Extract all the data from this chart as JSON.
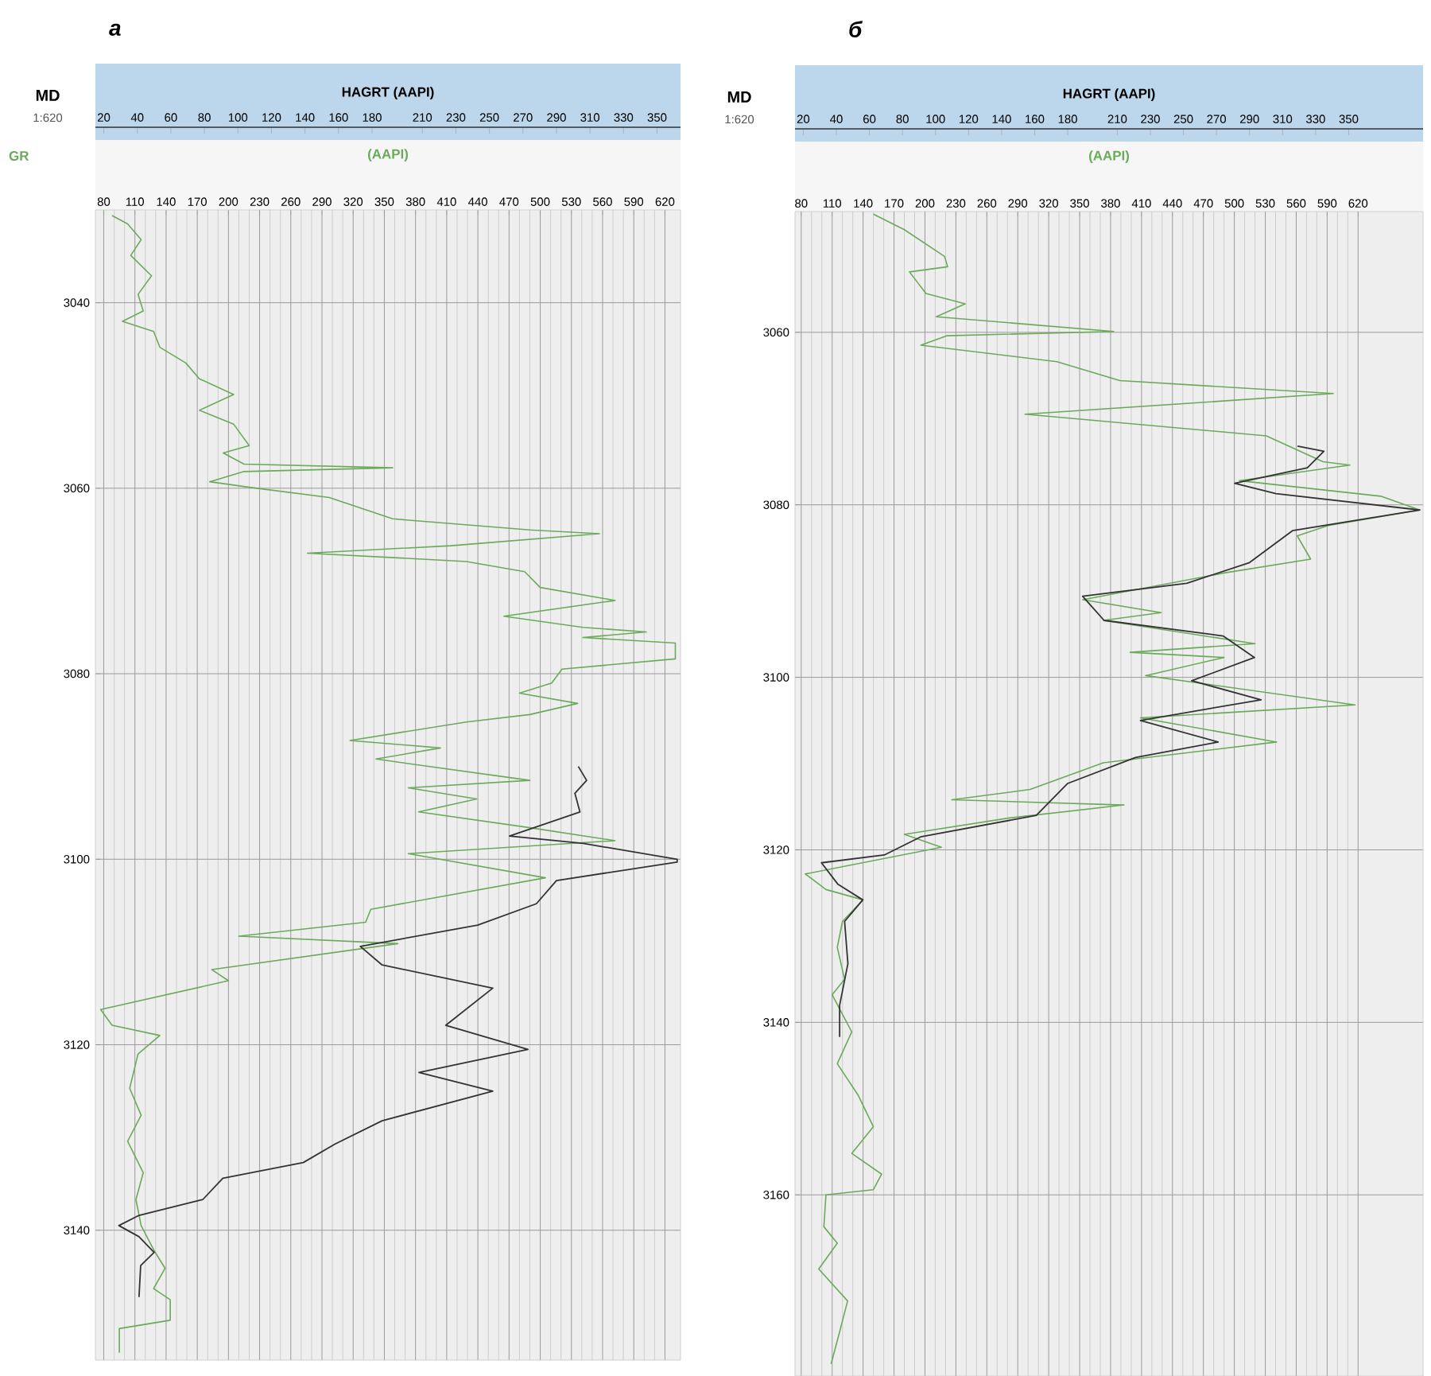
{
  "chart_data": [
    {
      "type": "line",
      "title": "а",
      "xlabel": "(AAPI)",
      "x2label": "HAGRT (AAPI)",
      "ylabel": "MD",
      "annotations": [
        "1:620"
      ],
      "xlim": [
        72,
        635
      ],
      "xticks": [
        80,
        110,
        140,
        170,
        200,
        230,
        260,
        290,
        320,
        350,
        380,
        410,
        440,
        470,
        500,
        530,
        560,
        590,
        620
      ],
      "x2lim": [
        15,
        364
      ],
      "x2ticks": [
        20,
        40,
        60,
        80,
        100,
        120,
        140,
        160,
        180,
        210,
        230,
        250,
        270,
        290,
        310,
        330,
        350
      ],
      "ylim": [
        3154,
        3030
      ],
      "yticks": [
        3040,
        3060,
        3080,
        3100,
        3120,
        3140
      ],
      "grid": true,
      "series": [
        {
          "name": "GR",
          "color": "#6aaa5a",
          "x": [
            88,
            103,
            116,
            106,
            126,
            113,
            118,
            98,
            128,
            134,
            159,
            172,
            205,
            172,
            205,
            220,
            195,
            215,
            358,
            215,
            182,
            220,
            297,
            358,
            490,
            557,
            414,
            276,
            429,
            485,
            500,
            572,
            465,
            541,
            602,
            541,
            630,
            630,
            521,
            511,
            480,
            536,
            490,
            429,
            317,
            404,
            342,
            490,
            373,
            439,
            383,
            490,
            572,
            373,
            505,
            337,
            332,
            210,
            363,
            184,
            200,
            77,
            88,
            134,
            113,
            105,
            116,
            103,
            118,
            111,
            116,
            128,
            139,
            128,
            144,
            144,
            95,
            95
          ],
          "values": [
            3030.6,
            3031.5,
            3033.2,
            3034.9,
            3037.1,
            3039.1,
            3040.9,
            3042,
            3043.1,
            3044.8,
            3046.5,
            3048.2,
            3049.9,
            3051.6,
            3053.1,
            3055.4,
            3056.2,
            3057.4,
            3057.8,
            3058.2,
            3059.3,
            3059.9,
            3061,
            3063.3,
            3064.5,
            3064.9,
            3066.2,
            3067,
            3067.9,
            3069,
            3070.7,
            3072.1,
            3073.8,
            3075,
            3075.5,
            3076.1,
            3076.7,
            3078.4,
            3079.5,
            3081,
            3082.1,
            3083.2,
            3084.4,
            3085.2,
            3087.2,
            3088,
            3089.2,
            3091.5,
            3092.3,
            3093.5,
            3094.9,
            3096.6,
            3098,
            3099.4,
            3102,
            3105.4,
            3106.8,
            3108.3,
            3109.1,
            3111.9,
            3113.1,
            3116.2,
            3117.9,
            3119,
            3121,
            3124.7,
            3127.6,
            3130.4,
            3133.8,
            3136.7,
            3139.5,
            3142.1,
            3144.1,
            3146.3,
            3147.5,
            3149.7,
            3150.6,
            3153.2
          ]
        },
        {
          "color": "#333333",
          "axis": "x2",
          "x": [
            303,
            308,
            301,
            304,
            262,
            306,
            362,
            362,
            290,
            278,
            243,
            173,
            186,
            252,
            224,
            273,
            208,
            252,
            186,
            158,
            139,
            91,
            79,
            41,
            29,
            41,
            50,
            42,
            41
          ],
          "values": [
            3090,
            3091.5,
            3092.9,
            3094.9,
            3097.5,
            3098.3,
            3100,
            3100.3,
            3102.3,
            3104.8,
            3107.1,
            3109.4,
            3111.4,
            3113.9,
            3117.9,
            3120.5,
            3123,
            3125,
            3128.2,
            3130.7,
            3132.7,
            3134.4,
            3136.7,
            3138.4,
            3139.5,
            3140.7,
            3142.4,
            3143.8,
            3147.2
          ]
        }
      ]
    },
    {
      "type": "line",
      "title": "б",
      "xlabel": "(AAPI)",
      "x2label": "HAGRT (AAPI)",
      "ylabel": "MD",
      "annotations": [
        "1:620"
      ],
      "xlim": [
        74,
        683
      ],
      "xticks": [
        80,
        110,
        140,
        170,
        200,
        230,
        260,
        290,
        320,
        350,
        380,
        410,
        440,
        470,
        500,
        530,
        560,
        590,
        620
      ],
      "x2lim": [
        15,
        395
      ],
      "x2ticks": [
        20,
        40,
        60,
        80,
        100,
        120,
        140,
        160,
        180,
        210,
        230,
        250,
        270,
        290,
        310,
        330,
        350
      ],
      "ylim": [
        3181,
        3046
      ],
      "yticks": [
        3060,
        3080,
        3100,
        3120,
        3140,
        3160
      ],
      "grid": true,
      "series": [
        {
          "color": "#6aaa5a",
          "x": [
            150,
            180,
            219,
            222,
            185,
            201,
            239,
            211,
            383,
            221,
            196,
            328,
            389,
            596,
            297,
            531,
            586,
            612,
            505,
            642,
            680,
            591,
            561,
            574,
            490,
            353,
            429,
            373,
            520,
            399,
            490,
            414,
            617,
            409,
            541,
            373,
            302,
            226,
            393,
            282,
            180,
            216,
            84,
            104,
            140,
            120,
            115,
            122,
            110,
            129,
            115,
            135,
            150,
            129,
            158,
            150,
            104,
            102,
            115,
            97,
            125,
            117,
            109
          ],
          "values": [
            3046.3,
            3048.1,
            3051.2,
            3052.4,
            3053,
            3055.5,
            3056.7,
            3058.2,
            3059.9,
            3060.4,
            3061.5,
            3063.4,
            3065.6,
            3067.1,
            3069.5,
            3072,
            3075,
            3075.4,
            3077.2,
            3079,
            3080.6,
            3082.4,
            3083.6,
            3086.3,
            3087.9,
            3091,
            3092.5,
            3093.4,
            3096.1,
            3097.1,
            3097.7,
            3099.8,
            3103.2,
            3104.7,
            3107.5,
            3109.9,
            3113,
            3114.2,
            3114.8,
            3116.3,
            3118.2,
            3119.7,
            3122.8,
            3124.6,
            3125.8,
            3128.3,
            3131.3,
            3135,
            3136.8,
            3141.1,
            3144.8,
            3148.4,
            3152.1,
            3155.2,
            3157.6,
            3159.4,
            3160,
            3163.7,
            3165.6,
            3168.6,
            3172.3,
            3176,
            3179.6
          ]
        },
        {
          "color": "#333333",
          "axis": "x2",
          "x": [
            319,
            335,
            325,
            281,
            306,
            393,
            316,
            290,
            252,
            189,
            202,
            274,
            293,
            255,
            297,
            224,
            271,
            221,
            180,
            161,
            91,
            69,
            31,
            41,
            56,
            45,
            47,
            42,
            42
          ],
          "values": [
            3073.2,
            3073.8,
            3075.7,
            3077.5,
            3078.7,
            3080.6,
            3083,
            3086.7,
            3089.1,
            3090.6,
            3093.4,
            3095.2,
            3097.7,
            3100.4,
            3102.6,
            3105,
            3107.5,
            3109.3,
            3112.3,
            3116,
            3118.5,
            3120.6,
            3121.5,
            3124,
            3125.8,
            3128.3,
            3133.2,
            3138,
            3141.7
          ]
        }
      ]
    }
  ]
}
